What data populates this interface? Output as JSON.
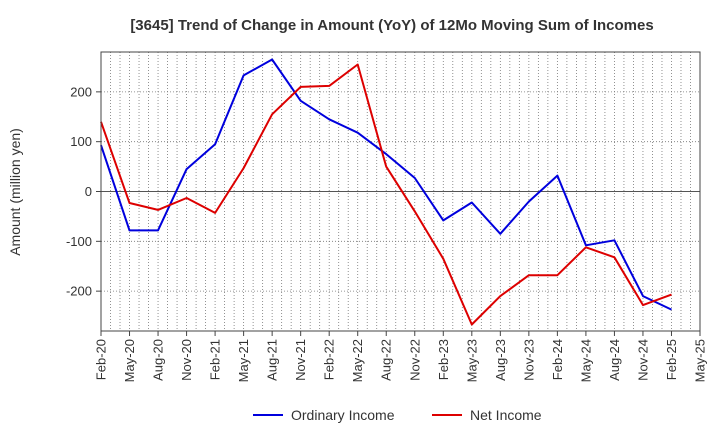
{
  "chart_data": {
    "type": "line",
    "title": "[3645]  Trend of Change in Amount (YoY) of 12Mo Moving Sum of Incomes",
    "ylabel": "Amount (million yen)",
    "xlabel": "",
    "ylim": [
      -280,
      280
    ],
    "yticks": [
      -200,
      -100,
      0,
      100,
      200
    ],
    "grid": true,
    "legend_position": "bottom",
    "categories": [
      "Feb-20",
      "May-20",
      "Aug-20",
      "Nov-20",
      "Feb-21",
      "May-21",
      "Aug-21",
      "Nov-21",
      "Feb-22",
      "May-22",
      "Aug-22",
      "Nov-22",
      "Feb-23",
      "May-23",
      "Aug-23",
      "Nov-23",
      "Feb-24",
      "May-24",
      "Aug-24",
      "Nov-24",
      "Feb-25",
      "May-25"
    ],
    "series": [
      {
        "name": "Ordinary Income",
        "color": "#0000dd",
        "values": [
          93,
          -78,
          -78,
          45,
          95,
          233,
          265,
          182,
          145,
          118,
          75,
          27,
          -58,
          -22,
          -85,
          -20,
          32,
          -108,
          -98,
          -210,
          -237,
          null
        ]
      },
      {
        "name": "Net Income",
        "color": "#dd0000",
        "values": [
          140,
          -23,
          -37,
          -13,
          -43,
          47,
          155,
          210,
          212,
          255,
          50,
          -40,
          -135,
          -267,
          -210,
          -168,
          -168,
          -112,
          -132,
          -228,
          -207,
          null
        ]
      }
    ]
  }
}
